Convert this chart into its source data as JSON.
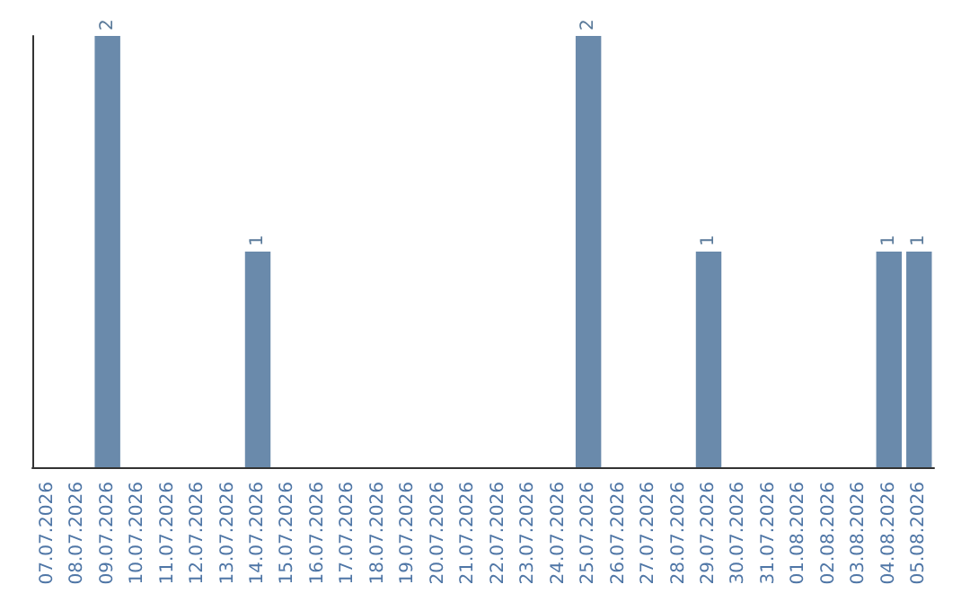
{
  "chart_data": {
    "type": "bar",
    "categories": [
      "07.07.2026",
      "08.07.2026",
      "09.07.2026",
      "10.07.2026",
      "11.07.2026",
      "12.07.2026",
      "13.07.2026",
      "14.07.2026",
      "15.07.2026",
      "16.07.2026",
      "17.07.2026",
      "18.07.2026",
      "19.07.2026",
      "20.07.2026",
      "21.07.2026",
      "22.07.2026",
      "23.07.2026",
      "24.07.2026",
      "25.07.2026",
      "26.07.2026",
      "27.07.2026",
      "28.07.2026",
      "29.07.2026",
      "30.07.2026",
      "31.07.2026",
      "01.08.2026",
      "02.08.2026",
      "03.08.2026",
      "04.08.2026",
      "05.08.2026"
    ],
    "values": [
      0,
      0,
      2,
      0,
      0,
      0,
      0,
      1,
      0,
      0,
      0,
      0,
      0,
      0,
      0,
      0,
      0,
      0,
      2,
      0,
      0,
      0,
      1,
      0,
      0,
      0,
      0,
      0,
      1,
      1
    ],
    "value_labels": [
      null,
      null,
      "2",
      null,
      null,
      null,
      null,
      "1",
      null,
      null,
      null,
      null,
      null,
      null,
      null,
      null,
      null,
      null,
      "2",
      null,
      null,
      null,
      "1",
      null,
      null,
      null,
      null,
      null,
      "1",
      "1"
    ],
    "color": "#6a8aab",
    "tick_labels": "x",
    "grid": false
  }
}
